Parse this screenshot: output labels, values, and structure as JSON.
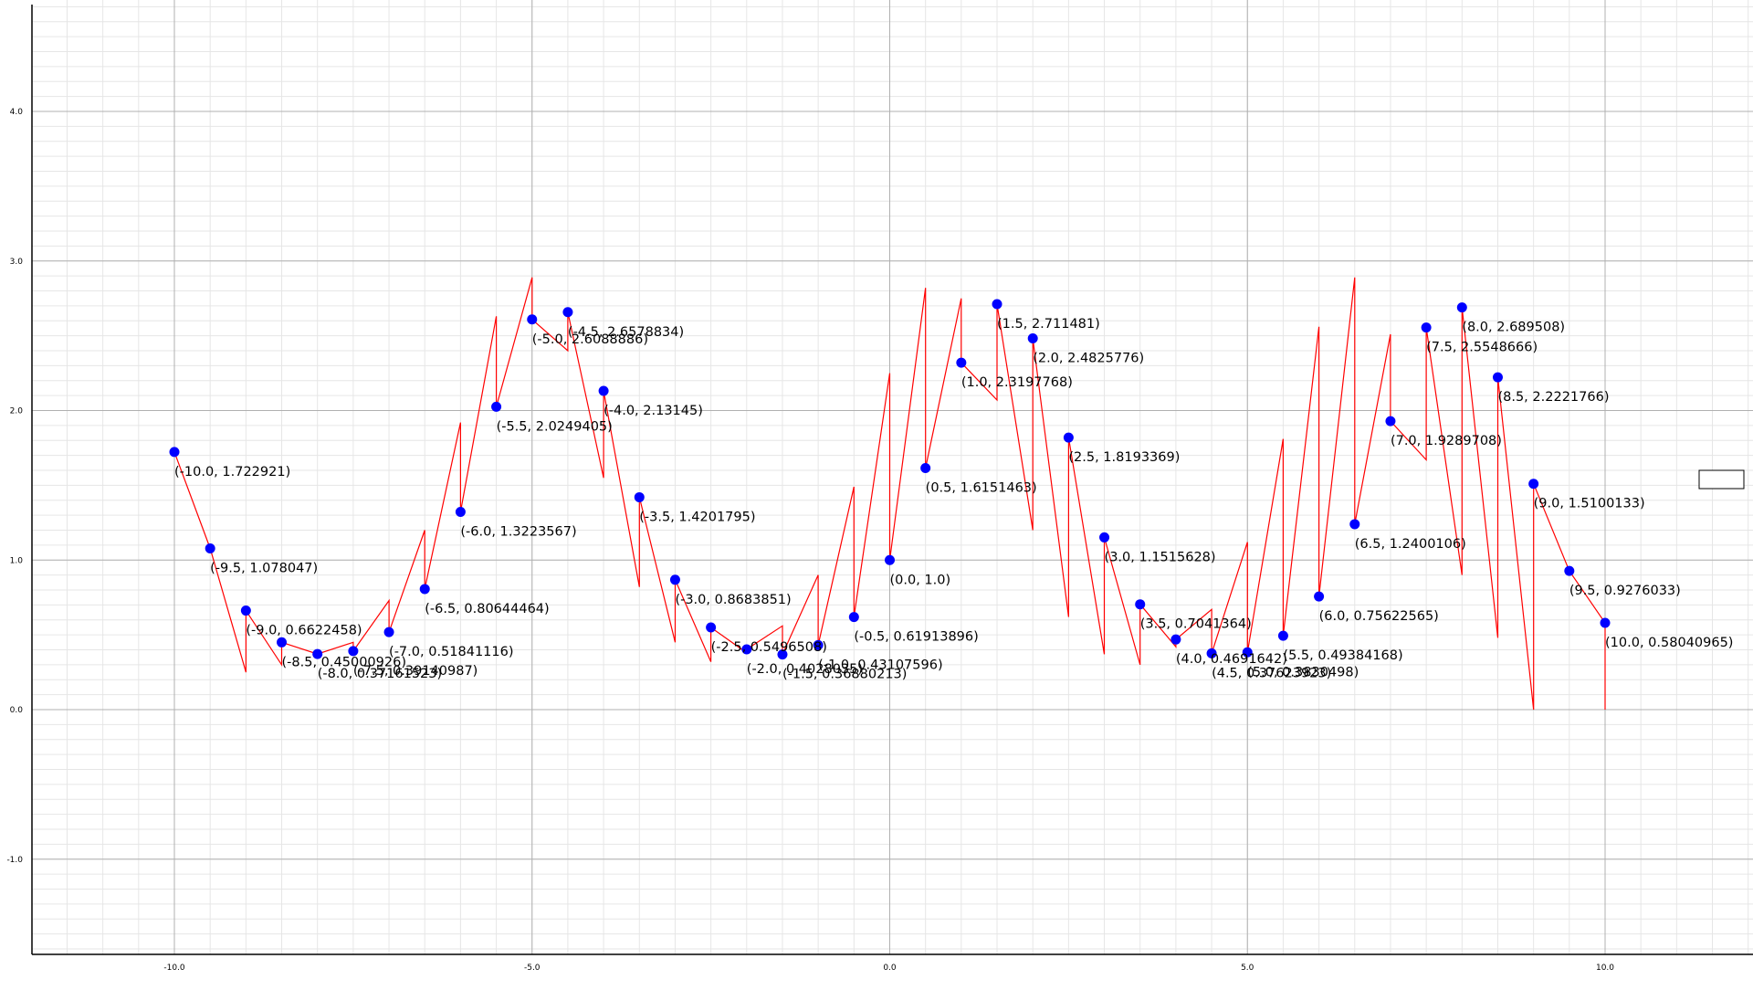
{
  "chart_data": {
    "type": "line",
    "title": "",
    "xlabel": "",
    "ylabel": "",
    "xlim": [
      -12.0,
      12.0
    ],
    "ylim": [
      -1.65,
      4.75
    ],
    "grid": true,
    "x_ticks": [
      {
        "value": -10,
        "label": "-10.0"
      },
      {
        "value": -5,
        "label": "-5.0"
      },
      {
        "value": 0,
        "label": "0.0"
      },
      {
        "value": 5,
        "label": "5.0"
      },
      {
        "value": 10,
        "label": "10.0"
      }
    ],
    "y_ticks": [
      {
        "value": -1,
        "label": "-1.0"
      },
      {
        "value": 0,
        "label": "0.0"
      },
      {
        "value": 1,
        "label": "1.0"
      },
      {
        "value": 2,
        "label": "2.0"
      },
      {
        "value": 3,
        "label": "3.0"
      },
      {
        "value": 4,
        "label": "4.0"
      }
    ],
    "colors": {
      "line": "#ff0000",
      "points": "#0000ff",
      "major_grid": "#b0b0b0",
      "minor_grid": "#e6e6e6",
      "axis": "#000000"
    },
    "series": [
      {
        "points": [
          {
            "x": -10.0,
            "y": 1.722921,
            "label": "(-10.0, 1.722921)"
          },
          {
            "x": -9.5,
            "y": 1.078047,
            "label": "(-9.5, 1.078047)"
          },
          {
            "x": -9.0,
            "y": 0.6622458,
            "label": "(-9.0, 0.6622458)"
          },
          {
            "x": -8.5,
            "y": 0.45000926,
            "label": "(-8.5, 0.45000926)"
          },
          {
            "x": -8.0,
            "y": 0.37161523,
            "label": "(-8.0, 0.37161523)"
          },
          {
            "x": -7.5,
            "y": 0.39140987,
            "label": "(-7.5, 0.39140987)"
          },
          {
            "x": -7.0,
            "y": 0.51841116,
            "label": "(-7.0, 0.51841116)"
          },
          {
            "x": -6.5,
            "y": 0.80644464,
            "label": "(-6.5, 0.80644464)"
          },
          {
            "x": -6.0,
            "y": 1.3223567,
            "label": "(-6.0, 1.3223567)"
          },
          {
            "x": -5.5,
            "y": 2.0249405,
            "label": "(-5.5, 2.0249405)"
          },
          {
            "x": -5.0,
            "y": 2.6088886,
            "label": "(-5.0, 2.6088886)"
          },
          {
            "x": -4.5,
            "y": 2.6578834,
            "label": "(-4.5, 2.6578834)"
          },
          {
            "x": -4.0,
            "y": 2.13145,
            "label": "(-4.0, 2.13145)"
          },
          {
            "x": -3.5,
            "y": 1.4201795,
            "label": "(-3.5, 1.4201795)"
          },
          {
            "x": -3.0,
            "y": 0.8683851,
            "label": "(-3.0, 0.8683851)"
          },
          {
            "x": -2.5,
            "y": 0.5496508,
            "label": "(-2.5, 0.5496508)"
          },
          {
            "x": -2.0,
            "y": 0.4028035,
            "label": "(-2.0, 0.4028035)"
          },
          {
            "x": -1.5,
            "y": 0.36880213,
            "label": "(-1.5, 0.36880213)"
          },
          {
            "x": -1.0,
            "y": 0.43107596,
            "label": "(-1.0, 0.43107596)"
          },
          {
            "x": -0.5,
            "y": 0.61913896,
            "label": "(-0.5, 0.61913896)"
          },
          {
            "x": 0.0,
            "y": 1.0,
            "label": "(0.0, 1.0)"
          },
          {
            "x": 0.5,
            "y": 1.6151463,
            "label": "(0.5, 1.6151463)"
          },
          {
            "x": 1.0,
            "y": 2.3197768,
            "label": "(1.0, 2.3197768)"
          },
          {
            "x": 1.5,
            "y": 2.711481,
            "label": "(1.5, 2.711481)"
          },
          {
            "x": 2.0,
            "y": 2.4825776,
            "label": "(2.0, 2.4825776)"
          },
          {
            "x": 2.5,
            "y": 1.8193369,
            "label": "(2.5, 1.8193369)"
          },
          {
            "x": 3.0,
            "y": 1.1515628,
            "label": "(3.0, 1.1515628)"
          },
          {
            "x": 3.5,
            "y": 0.7041364,
            "label": "(3.5, 0.7041364)"
          },
          {
            "x": 4.0,
            "y": 0.4691642,
            "label": "(4.0, 0.4691642)"
          },
          {
            "x": 4.5,
            "y": 0.37623923,
            "label": "(4.5, 0.37623923)"
          },
          {
            "x": 5.0,
            "y": 0.3830498,
            "label": "(5.0, 0.3830498)"
          },
          {
            "x": 5.5,
            "y": 0.49384168,
            "label": "(5.5, 0.49384168)"
          },
          {
            "x": 6.0,
            "y": 0.75622565,
            "label": "(6.0, 0.75622565)"
          },
          {
            "x": 6.5,
            "y": 1.2400106,
            "label": "(6.5, 1.2400106)"
          },
          {
            "x": 7.0,
            "y": 1.9289708,
            "label": "(7.0, 1.9289708)"
          },
          {
            "x": 7.5,
            "y": 2.5548666,
            "label": "(7.5, 2.5548666)"
          },
          {
            "x": 8.0,
            "y": 2.689508,
            "label": "(8.0, 2.689508)"
          },
          {
            "x": 8.5,
            "y": 2.2221766,
            "label": "(8.5, 2.2221766)"
          },
          {
            "x": 9.0,
            "y": 1.5100133,
            "label": "(9.0, 1.5100133)"
          },
          {
            "x": 9.5,
            "y": 0.9276033,
            "label": "(9.5, 0.9276033)"
          },
          {
            "x": 10.0,
            "y": 0.58040965,
            "label": "(10.0, 0.58040965)"
          }
        ],
        "peaks": [
          0.25,
          0.3,
          0.45,
          0.73,
          1.2,
          1.92,
          2.63,
          2.89,
          2.4,
          1.55,
          0.82,
          0.45,
          0.32,
          0.38,
          0.56,
          0.9,
          1.49,
          2.25,
          2.82,
          2.75,
          2.07,
          1.2,
          0.62,
          0.37,
          0.3,
          0.42,
          0.67,
          1.12,
          1.81,
          2.56,
          2.89,
          2.51,
          1.67,
          0.9,
          0.48,
          0.0
        ]
      }
    ]
  }
}
